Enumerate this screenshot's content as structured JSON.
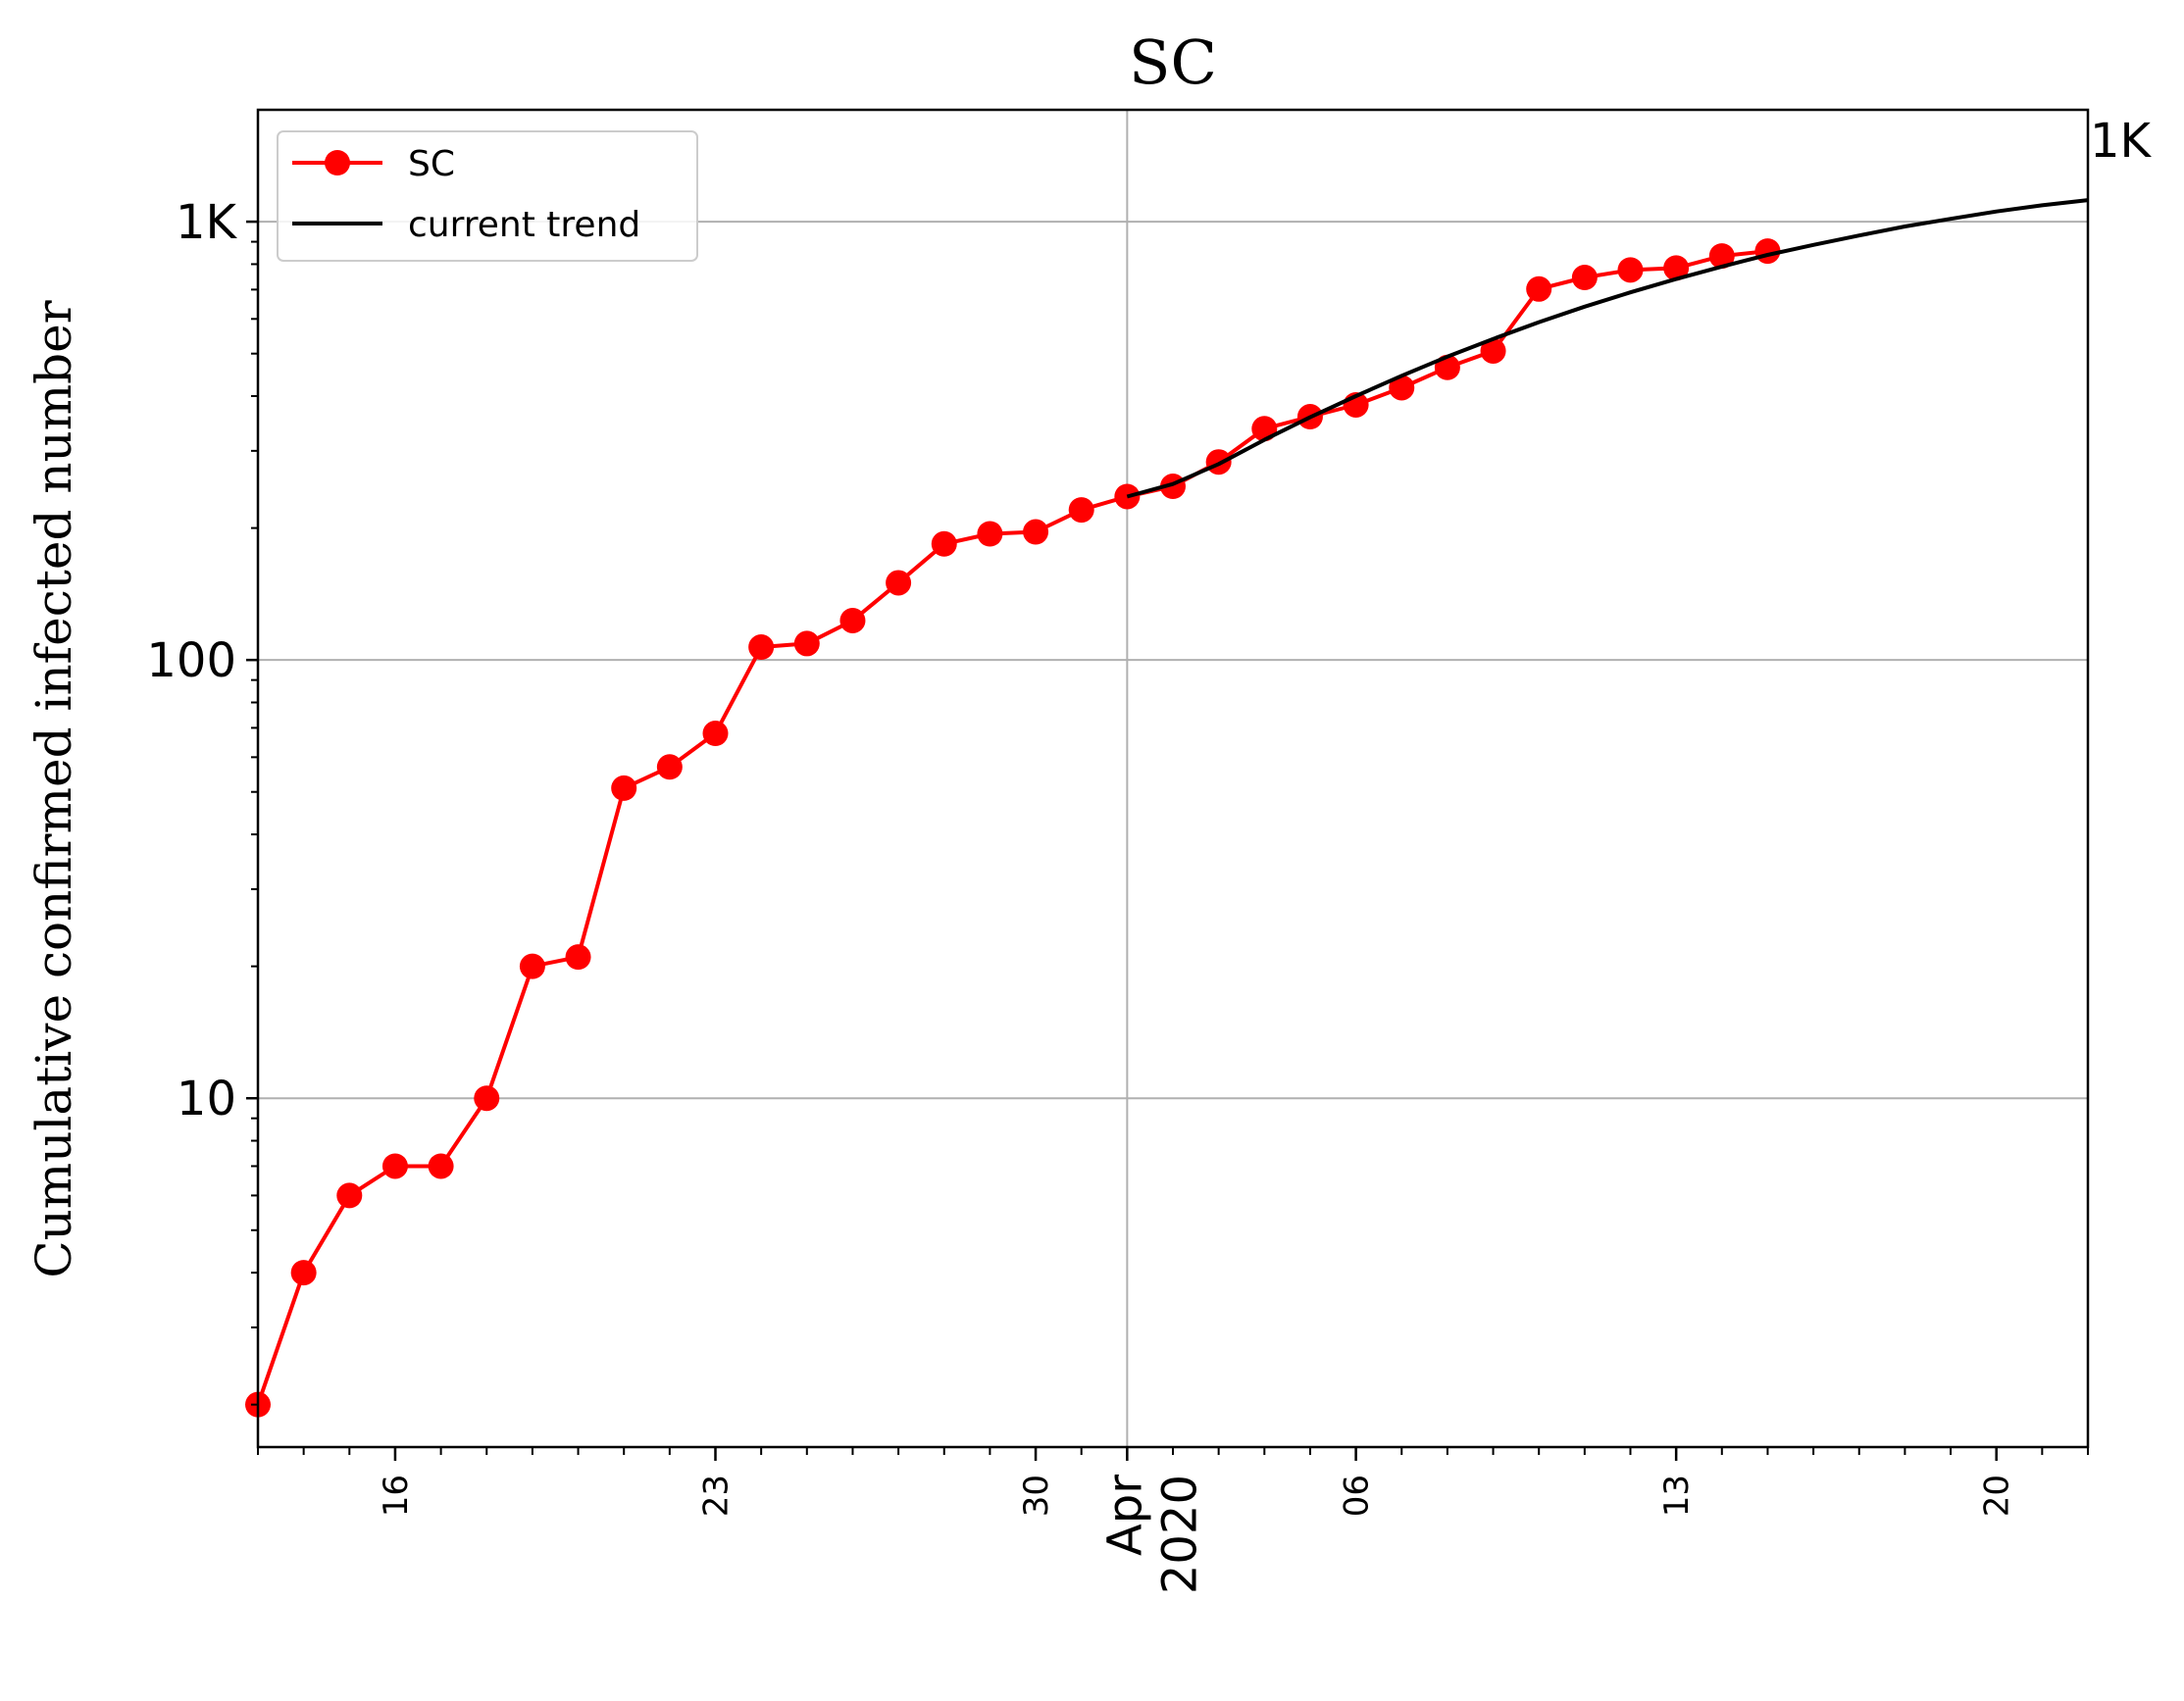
{
  "chart_data": {
    "type": "line",
    "title": "SC",
    "ylabel": "Cumulative confirmed infected number",
    "yscale": "log",
    "ylim": [
      1.6,
      1800
    ],
    "yticks": [
      {
        "value": 10,
        "label": "10"
      },
      {
        "value": 100,
        "label": "100"
      },
      {
        "value": 1000,
        "label": "1K"
      }
    ],
    "xlim": [
      "2020-03-13",
      "2020-04-22"
    ],
    "xticks": [
      {
        "date": "2020-03-16",
        "label": "16"
      },
      {
        "date": "2020-03-23",
        "label": "23"
      },
      {
        "date": "2020-03-30",
        "label": "30"
      },
      {
        "date": "2020-04-06",
        "label": "06"
      },
      {
        "date": "2020-04-13",
        "label": "13"
      },
      {
        "date": "2020-04-20",
        "label": "20"
      }
    ],
    "month_label": {
      "date": "2020-04-01",
      "month": "Apr",
      "year": "2020"
    },
    "grid": true,
    "legend_position": "top-left",
    "series": [
      {
        "name": "SC",
        "color": "#ff0000",
        "marker": "circle",
        "points": [
          [
            "2020-03-13",
            2
          ],
          [
            "2020-03-14",
            4
          ],
          [
            "2020-03-15",
            6
          ],
          [
            "2020-03-16",
            7
          ],
          [
            "2020-03-17",
            7
          ],
          [
            "2020-03-18",
            10
          ],
          [
            "2020-03-19",
            20
          ],
          [
            "2020-03-20",
            21
          ],
          [
            "2020-03-21",
            51
          ],
          [
            "2020-03-22",
            57
          ],
          [
            "2020-03-23",
            68
          ],
          [
            "2020-03-24",
            107
          ],
          [
            "2020-03-25",
            109
          ],
          [
            "2020-03-26",
            123
          ],
          [
            "2020-03-27",
            150
          ],
          [
            "2020-03-28",
            184
          ],
          [
            "2020-03-29",
            194
          ],
          [
            "2020-03-30",
            196
          ],
          [
            "2020-03-31",
            220
          ],
          [
            "2020-04-01",
            236
          ],
          [
            "2020-04-02",
            249
          ],
          [
            "2020-04-03",
            283
          ],
          [
            "2020-04-04",
            337
          ],
          [
            "2020-04-05",
            359
          ],
          [
            "2020-04-06",
            382
          ],
          [
            "2020-04-07",
            418
          ],
          [
            "2020-04-08",
            465
          ],
          [
            "2020-04-09",
            507
          ],
          [
            "2020-04-10",
            702
          ],
          [
            "2020-04-11",
            746
          ],
          [
            "2020-04-12",
            776
          ],
          [
            "2020-04-13",
            784
          ],
          [
            "2020-04-14",
            835
          ],
          [
            "2020-04-15",
            857
          ]
        ]
      },
      {
        "name": "current trend",
        "color": "#000000",
        "marker": "none",
        "points": [
          [
            "2020-04-01",
            236
          ],
          [
            "2020-04-02",
            252
          ],
          [
            "2020-04-03",
            280
          ],
          [
            "2020-04-04",
            318
          ],
          [
            "2020-04-05",
            358
          ],
          [
            "2020-04-06",
            400
          ],
          [
            "2020-04-07",
            445
          ],
          [
            "2020-04-08",
            492
          ],
          [
            "2020-04-09",
            540
          ],
          [
            "2020-04-10",
            590
          ],
          [
            "2020-04-11",
            640
          ],
          [
            "2020-04-12",
            690
          ],
          [
            "2020-04-13",
            740
          ],
          [
            "2020-04-14",
            790
          ],
          [
            "2020-04-15",
            840
          ],
          [
            "2020-04-16",
            885
          ],
          [
            "2020-04-17",
            930
          ],
          [
            "2020-04-18",
            975
          ],
          [
            "2020-04-19",
            1015
          ],
          [
            "2020-04-20",
            1055
          ],
          [
            "2020-04-21",
            1090
          ],
          [
            "2020-04-22",
            1120
          ]
        ]
      }
    ],
    "end_label": "1K"
  }
}
